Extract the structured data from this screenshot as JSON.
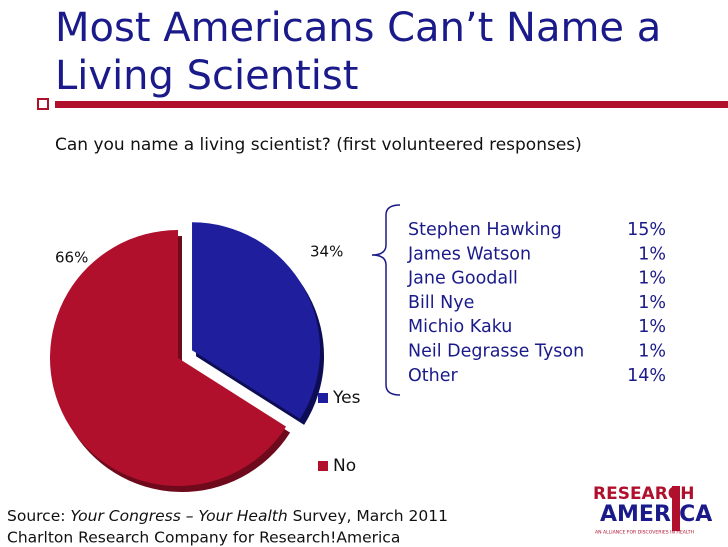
{
  "chart_data": {
    "type": "pie",
    "title": [
      "Most Americans Can’t Name a",
      "Living Scientist"
    ],
    "subtitle": "Can you name a living scientist? (first volunteered responses)",
    "categories": [
      "Yes",
      "No"
    ],
    "values": [
      34,
      66
    ],
    "value_labels": [
      "34%",
      "66%"
    ],
    "colors": [
      "#1f1f9e",
      "#b0102c"
    ],
    "legend": "right"
  },
  "breakdown": {
    "rows": [
      {
        "name": "Stephen Hawking",
        "value": "15%"
      },
      {
        "name": "James Watson",
        "value": "1%"
      },
      {
        "name": "Jane Goodall",
        "value": "1%"
      },
      {
        "name": "Bill Nye",
        "value": "1%"
      },
      {
        "name": "Michio Kaku",
        "value": "1%"
      },
      {
        "name": "Neil Degrasse Tyson",
        "value": "1%"
      },
      {
        "name": "Other",
        "value": "14%"
      }
    ]
  },
  "footer": {
    "source": [
      "Source: ",
      "Your Congress – Your Health",
      " Survey, March 2011"
    ],
    "credit": "Charlton Research Company for Research!America"
  },
  "logo": {
    "top": "RESEARCH",
    "bottom": "AMERICA",
    "tagline": "AN ALLIANCE FOR DISCOVERIES IN HEALTH"
  }
}
